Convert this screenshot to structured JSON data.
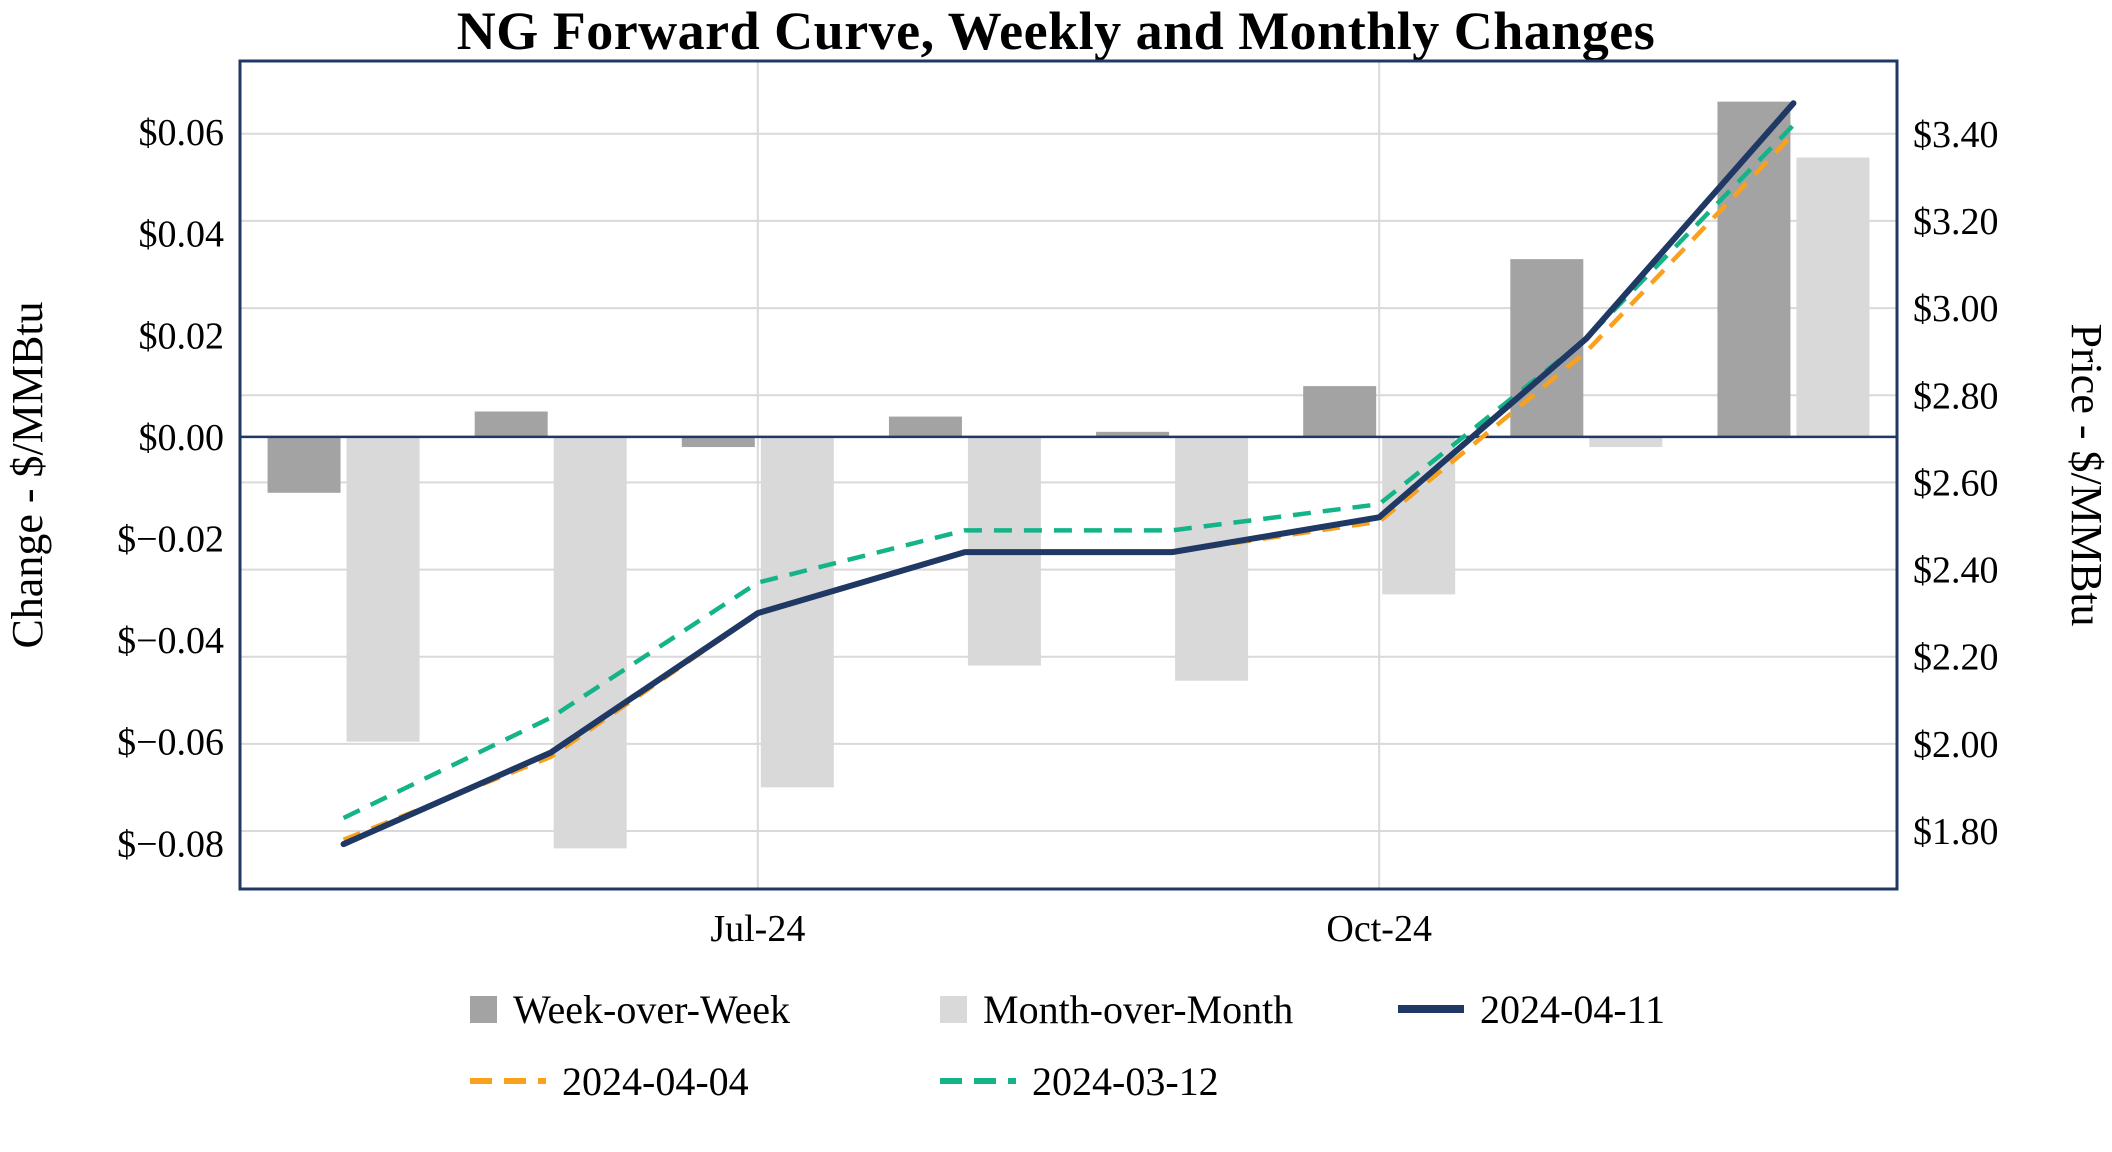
{
  "chart_data": {
    "type": "combo-bar-line",
    "title": "NG Forward Curve, Weekly and Monthly Changes",
    "num_points": 8,
    "x_ticks": [
      {
        "index": 2,
        "label": "Jul-24"
      },
      {
        "index": 5,
        "label": "Oct-24"
      }
    ],
    "left_axis": {
      "label": "Change - $/MMBtu",
      "min": -0.089,
      "max": 0.074,
      "tick_values": [
        0.06,
        0.04,
        0.02,
        0.0,
        -0.02,
        -0.04,
        -0.06,
        -0.08
      ],
      "tick_labels": [
        "$0.06",
        "$0.04",
        "$0.02",
        "$0.00",
        "$−0.02",
        "$−0.04",
        "$−0.06",
        "$−0.08"
      ]
    },
    "right_axis": {
      "label": "Price - $/MMBtu",
      "min": 1.667,
      "max": 3.567,
      "tick_values": [
        3.4,
        3.2,
        3.0,
        2.8,
        2.6,
        2.4,
        2.2,
        2.0,
        1.8
      ],
      "tick_labels": [
        "$3.40",
        "$3.20",
        "$3.00",
        "$2.80",
        "$2.60",
        "$2.40",
        "$2.20",
        "$2.00",
        "$1.80"
      ]
    },
    "bar_series": [
      {
        "name": "Week-over-Week",
        "axis": "left",
        "color": "#a3a3a3",
        "values": [
          -0.011,
          0.005,
          -0.002,
          0.004,
          0.001,
          0.01,
          0.035,
          0.066
        ]
      },
      {
        "name": "Month-over-Month",
        "axis": "left",
        "color": "#d9d9d9",
        "values": [
          -0.06,
          -0.081,
          -0.069,
          -0.045,
          -0.048,
          -0.031,
          -0.002,
          0.055
        ]
      }
    ],
    "line_series": [
      {
        "name": "2024-04-11",
        "axis": "right",
        "color": "#1f3864",
        "style": "solid",
        "values": [
          1.77,
          1.98,
          2.3,
          2.44,
          2.44,
          2.52,
          2.93,
          3.47
        ]
      },
      {
        "name": "2024-04-04",
        "axis": "right",
        "color": "#f9a11d",
        "style": "dashed",
        "values": [
          1.78,
          1.97,
          2.3,
          2.44,
          2.44,
          2.51,
          2.9,
          3.4
        ]
      },
      {
        "name": "2024-03-12",
        "axis": "right",
        "color": "#14b488",
        "style": "dashed",
        "values": [
          1.83,
          2.06,
          2.37,
          2.49,
          2.49,
          2.55,
          2.93,
          3.42
        ]
      }
    ],
    "colors": {
      "frame": "#1f3864",
      "zero_line": "#1f3864",
      "gridline": "#d9d9d9",
      "background": "#ffffff",
      "text": "#000000"
    }
  }
}
